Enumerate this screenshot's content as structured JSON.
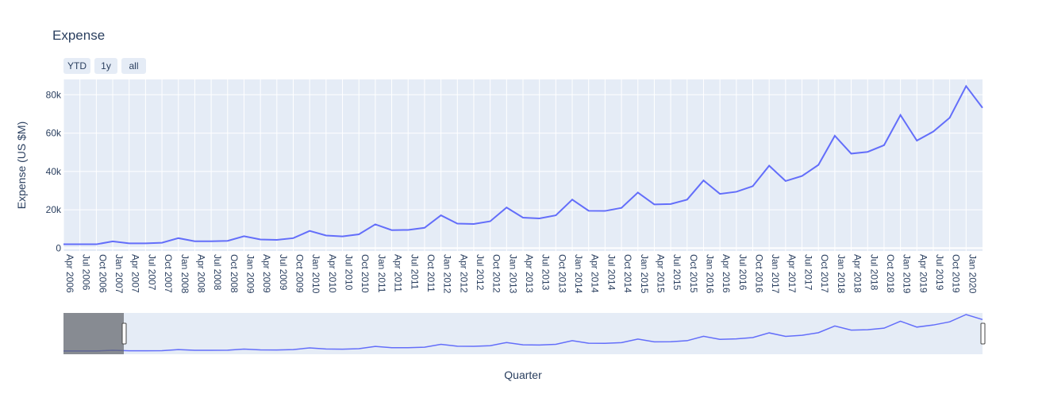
{
  "chart_data": {
    "type": "line",
    "title": "Expense",
    "xlabel": "Quarter",
    "ylabel": "Expense (US $M)",
    "ylim": [
      -1500,
      88000
    ],
    "y_ticks": [
      {
        "value": 0,
        "label": "0"
      },
      {
        "value": 20000,
        "label": "20k"
      },
      {
        "value": 40000,
        "label": "40k"
      },
      {
        "value": 60000,
        "label": "60k"
      },
      {
        "value": 80000,
        "label": "80k"
      }
    ],
    "x_ticks": [
      "Apr 2006",
      "Jul 2006",
      "Oct 2006",
      "Jan 2007",
      "Apr 2007",
      "Jul 2007",
      "Oct 2007",
      "Jan 2008",
      "Apr 2008",
      "Jul 2008",
      "Oct 2008",
      "Jan 2009",
      "Apr 2009",
      "Jul 2009",
      "Oct 2009",
      "Jan 2010",
      "Apr 2010",
      "Jul 2010",
      "Oct 2010",
      "Jan 2011",
      "Apr 2011",
      "Jul 2011",
      "Oct 2011",
      "Jan 2012",
      "Apr 2012",
      "Jul 2012",
      "Oct 2012",
      "Jan 2013",
      "Apr 2013",
      "Jul 2013",
      "Oct 2013",
      "Jan 2014",
      "Apr 2014",
      "Jul 2014",
      "Oct 2014",
      "Jan 2015",
      "Apr 2015",
      "Jul 2015",
      "Oct 2015",
      "Jan 2016",
      "Apr 2016",
      "Jul 2016",
      "Oct 2016",
      "Jan 2017",
      "Apr 2017",
      "Jul 2017",
      "Oct 2017",
      "Jan 2018",
      "Apr 2018",
      "Jul 2018",
      "Oct 2018",
      "Jan 2019",
      "Apr 2019",
      "Jul 2019",
      "Oct 2019",
      "Jan 2020"
    ],
    "x": [
      "2006-04",
      "2006-07",
      "2006-10",
      "2007-01",
      "2007-04",
      "2007-07",
      "2007-10",
      "2008-01",
      "2008-04",
      "2008-07",
      "2008-10",
      "2009-01",
      "2009-04",
      "2009-07",
      "2009-10",
      "2010-01",
      "2010-04",
      "2010-07",
      "2010-10",
      "2011-01",
      "2011-04",
      "2011-07",
      "2011-10",
      "2012-01",
      "2012-04",
      "2012-07",
      "2012-10",
      "2013-01",
      "2013-04",
      "2013-07",
      "2013-10",
      "2014-01",
      "2014-04",
      "2014-07",
      "2014-10",
      "2015-01",
      "2015-04",
      "2015-07",
      "2015-10",
      "2016-01",
      "2016-04",
      "2016-07",
      "2016-10",
      "2017-01",
      "2017-04",
      "2017-07",
      "2017-10",
      "2018-01",
      "2018-04",
      "2018-07",
      "2018-10",
      "2019-01",
      "2019-04",
      "2019-07",
      "2019-10",
      "2020-01",
      "2020-04"
    ],
    "series": [
      {
        "values": [
          2000,
          2000,
          2000,
          3500,
          2500,
          2500,
          2800,
          5200,
          3600,
          3600,
          3800,
          6200,
          4500,
          4300,
          5200,
          9000,
          6600,
          6100,
          7200,
          12400,
          9400,
          9500,
          10600,
          17100,
          12800,
          12600,
          14000,
          21200,
          15900,
          15500,
          17100,
          25300,
          19500,
          19400,
          21000,
          29000,
          22800,
          23000,
          25300,
          35300,
          28300,
          29400,
          32300,
          43000,
          35000,
          37600,
          43400,
          58600,
          49300,
          50200,
          53700,
          69400,
          56100,
          60800,
          68000,
          84500,
          73200
        ]
      }
    ],
    "color": "#636efa",
    "plot_bg": "#e5ecf6",
    "grid": true,
    "range_selector": {
      "buttons": [
        "YTD",
        "1y",
        "all"
      ]
    },
    "range_slider": {
      "visible": true
    }
  }
}
